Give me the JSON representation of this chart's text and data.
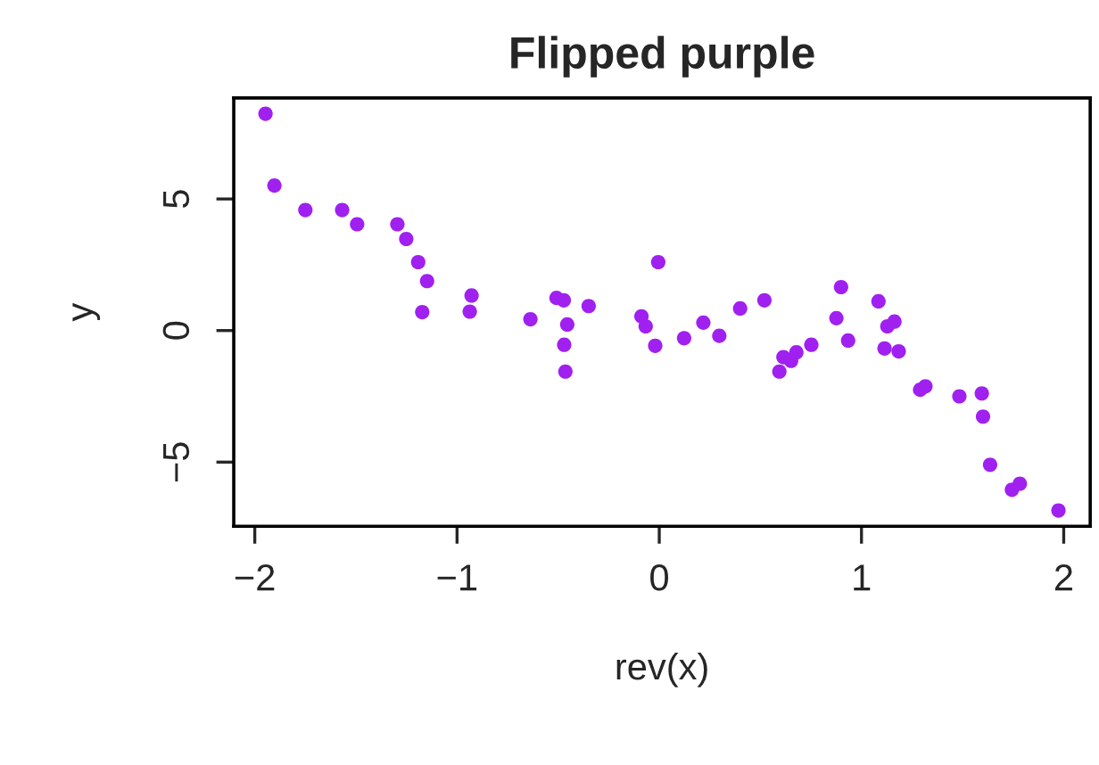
{
  "chart_data": {
    "type": "scatter",
    "title": "Flipped purple",
    "xlabel": "rev(x)",
    "ylabel": "y",
    "x": [
      -1.947,
      -1.903,
      -1.75,
      -1.568,
      -1.494,
      -1.295,
      -1.251,
      -1.192,
      -1.148,
      -1.172,
      -0.928,
      -0.937,
      -0.637,
      -0.508,
      -0.472,
      -0.455,
      -0.47,
      -0.464,
      -0.349,
      -0.088,
      -0.067,
      -0.02,
      -0.005,
      0.123,
      0.218,
      0.297,
      0.4,
      0.52,
      0.594,
      0.614,
      0.652,
      0.678,
      0.752,
      0.876,
      0.899,
      0.934,
      1.084,
      1.128,
      1.163,
      1.114,
      1.184,
      1.29,
      1.316,
      1.484,
      1.595,
      1.601,
      1.636,
      1.744,
      1.783,
      1.974
    ],
    "series": [
      {
        "color": "#a020f0",
        "values": [
          8.24,
          5.51,
          4.58,
          4.58,
          4.04,
          4.04,
          3.48,
          2.6,
          1.88,
          0.7,
          1.33,
          0.72,
          0.43,
          1.24,
          1.15,
          0.23,
          -0.54,
          -1.56,
          0.93,
          0.54,
          0.16,
          -0.58,
          2.6,
          -0.29,
          0.3,
          -0.2,
          0.84,
          1.15,
          -1.56,
          -1.01,
          -1.15,
          -0.83,
          -0.54,
          0.47,
          1.65,
          -0.38,
          1.11,
          0.16,
          0.34,
          -0.68,
          -0.79,
          -2.25,
          -2.12,
          -2.5,
          -2.39,
          -3.27,
          -5.1,
          -6.05,
          -5.82,
          -6.84
        ]
      }
    ],
    "marker": "circle",
    "xlim": [
      -2.104,
      2.131
    ],
    "xticks": [
      {
        "value": -2,
        "label": "−2"
      },
      {
        "value": -1,
        "label": "−1"
      },
      0,
      1,
      2
    ],
    "ylim": [
      -7.44,
      8.84
    ],
    "yticks": [
      {
        "value": -5,
        "label": "−5"
      },
      0,
      5
    ],
    "grid": false,
    "legend": false
  }
}
